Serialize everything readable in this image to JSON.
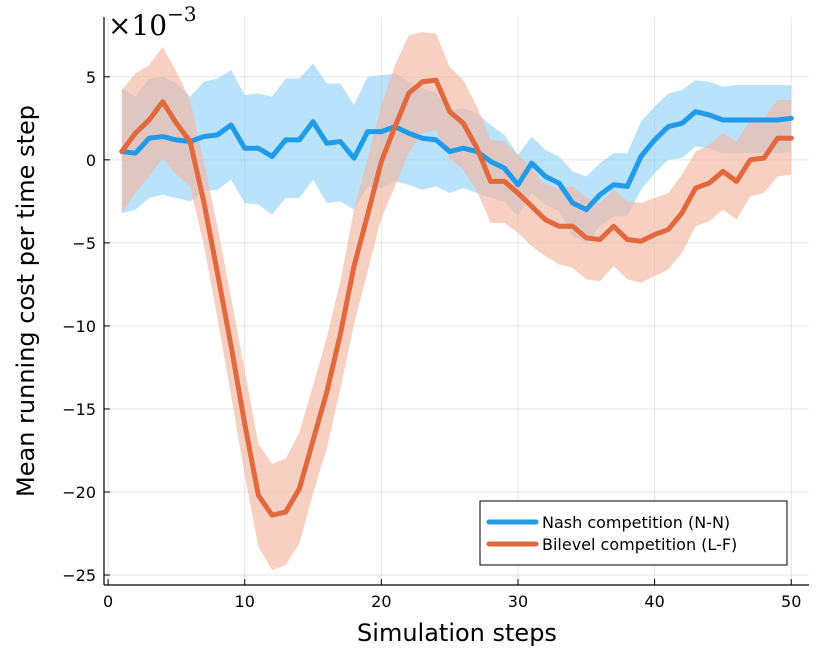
{
  "chart_data": {
    "type": "line",
    "xlabel": "Simulation steps",
    "ylabel": "Mean running cost per time step",
    "y_scale_label": "×10",
    "y_scale_exponent": "−3",
    "xlim": [
      -0.3,
      51.3
    ],
    "ylim": [
      -25.6,
      8.6
    ],
    "x_ticks": [
      0,
      10,
      20,
      30,
      40,
      50
    ],
    "x_tick_labels": [
      "0",
      "10",
      "20",
      "30",
      "40",
      "50"
    ],
    "y_ticks": [
      5,
      0,
      -5,
      -10,
      -15,
      -20,
      -25
    ],
    "y_tick_labels": [
      "5",
      "0",
      "−5",
      "−10",
      "−15",
      "−20",
      "−25"
    ],
    "grid": true,
    "legend_position": "bottom-right",
    "series": [
      {
        "name": "Nash competition (N-N)",
        "color": "#1f9bea",
        "band_color": "#8ed0f8",
        "x": [
          1,
          2,
          3,
          4,
          5,
          6,
          7,
          8,
          9,
          10,
          11,
          12,
          13,
          14,
          15,
          16,
          17,
          18,
          19,
          20,
          21,
          22,
          23,
          24,
          25,
          26,
          27,
          28,
          29,
          30,
          31,
          32,
          33,
          34,
          35,
          36,
          37,
          38,
          39,
          40,
          41,
          42,
          43,
          44,
          45,
          46,
          47,
          48,
          49,
          50
        ],
        "values": [
          0.5,
          0.4,
          1.3,
          1.4,
          1.2,
          1.1,
          1.4,
          1.5,
          2.1,
          0.7,
          0.7,
          0.2,
          1.2,
          1.2,
          2.3,
          1.0,
          1.1,
          0.1,
          1.7,
          1.7,
          2.0,
          1.6,
          1.3,
          1.2,
          0.5,
          0.7,
          0.5,
          -0.1,
          -0.5,
          -1.5,
          -0.2,
          -1.0,
          -1.4,
          -2.6,
          -3.0,
          -2.1,
          -1.5,
          -1.6,
          0.2,
          1.2,
          2.0,
          2.2,
          2.9,
          2.7,
          2.4,
          2.4,
          2.4,
          2.4,
          2.4,
          2.5
        ],
        "upper": [
          4.3,
          3.8,
          4.9,
          5.0,
          4.6,
          3.8,
          4.7,
          4.9,
          5.4,
          3.9,
          4.0,
          3.8,
          4.9,
          4.9,
          5.8,
          4.6,
          4.6,
          3.3,
          5.0,
          5.1,
          5.2,
          4.7,
          4.3,
          4.0,
          3.0,
          3.1,
          2.8,
          2.1,
          1.5,
          0.3,
          1.4,
          0.6,
          0.2,
          -0.7,
          -1.0,
          -0.2,
          0.4,
          0.4,
          2.3,
          3.2,
          4.0,
          4.2,
          4.8,
          4.7,
          4.4,
          4.5,
          4.5,
          4.5,
          4.5,
          4.5
        ],
        "lower": [
          -3.2,
          -3.0,
          -2.3,
          -2.1,
          -2.3,
          -2.5,
          -1.9,
          -1.8,
          -1.2,
          -2.6,
          -2.7,
          -3.3,
          -2.3,
          -2.3,
          -1.2,
          -2.6,
          -2.5,
          -3.0,
          -1.6,
          -1.7,
          -1.3,
          -1.5,
          -1.8,
          -1.6,
          -2.0,
          -1.7,
          -2.0,
          -2.3,
          -2.5,
          -3.4,
          -2.0,
          -2.7,
          -3.1,
          -4.6,
          -5.0,
          -4.0,
          -3.4,
          -3.4,
          -1.8,
          -0.8,
          0.0,
          0.1,
          0.8,
          0.7,
          0.4,
          0.4,
          0.4,
          0.4,
          0.4,
          0.5
        ]
      },
      {
        "name": "Bilevel competition (L-F)",
        "color": "#e2683d",
        "band_color": "#f4b7a0",
        "x": [
          1,
          2,
          3,
          4,
          5,
          6,
          7,
          8,
          9,
          10,
          11,
          12,
          13,
          14,
          15,
          16,
          17,
          18,
          19,
          20,
          21,
          22,
          23,
          24,
          25,
          26,
          27,
          28,
          29,
          30,
          31,
          32,
          33,
          34,
          35,
          36,
          37,
          38,
          39,
          40,
          41,
          42,
          43,
          44,
          45,
          46,
          47,
          48,
          49,
          50
        ],
        "values": [
          0.5,
          1.6,
          2.4,
          3.5,
          2.2,
          1.1,
          -2.5,
          -6.8,
          -11.2,
          -15.9,
          -20.2,
          -21.4,
          -21.2,
          -19.8,
          -16.9,
          -14.0,
          -10.5,
          -6.4,
          -3.3,
          -0.1,
          2.0,
          4.0,
          4.7,
          4.8,
          2.9,
          2.2,
          0.7,
          -1.3,
          -1.3,
          -2.0,
          -2.8,
          -3.6,
          -4.0,
          -4.0,
          -4.7,
          -4.8,
          -4.0,
          -4.8,
          -4.9,
          -4.5,
          -4.2,
          -3.2,
          -1.7,
          -1.4,
          -0.7,
          -1.3,
          0.0,
          0.1,
          1.3,
          1.3
        ],
        "upper": [
          4.2,
          5.2,
          5.7,
          6.8,
          5.3,
          3.6,
          -0.1,
          -4.0,
          -8.3,
          -12.7,
          -17.1,
          -18.3,
          -18.0,
          -16.4,
          -13.6,
          -10.7,
          -7.3,
          -3.0,
          0.1,
          3.3,
          5.7,
          7.5,
          7.7,
          7.6,
          5.6,
          4.8,
          3.2,
          1.2,
          1.1,
          0.3,
          -0.5,
          -1.5,
          -1.7,
          -1.6,
          -2.3,
          -2.6,
          -1.8,
          -2.5,
          -2.6,
          -2.3,
          -2.0,
          -0.9,
          0.5,
          0.9,
          1.6,
          1.1,
          2.4,
          2.5,
          3.6,
          3.6
        ],
        "lower": [
          -3.2,
          -2.0,
          -1.0,
          0.1,
          -0.9,
          -1.6,
          -5.1,
          -9.5,
          -14.2,
          -19.0,
          -23.3,
          -24.7,
          -24.4,
          -23.1,
          -20.1,
          -17.4,
          -13.8,
          -9.9,
          -6.7,
          -3.5,
          -1.6,
          0.4,
          1.6,
          1.8,
          0.1,
          -0.6,
          -1.9,
          -3.8,
          -3.8,
          -4.4,
          -5.2,
          -5.8,
          -6.3,
          -6.5,
          -7.2,
          -7.3,
          -6.4,
          -7.2,
          -7.4,
          -7.0,
          -6.6,
          -5.6,
          -4.0,
          -3.7,
          -3.0,
          -3.6,
          -2.2,
          -2.0,
          -1.0,
          -0.9
        ]
      }
    ]
  }
}
